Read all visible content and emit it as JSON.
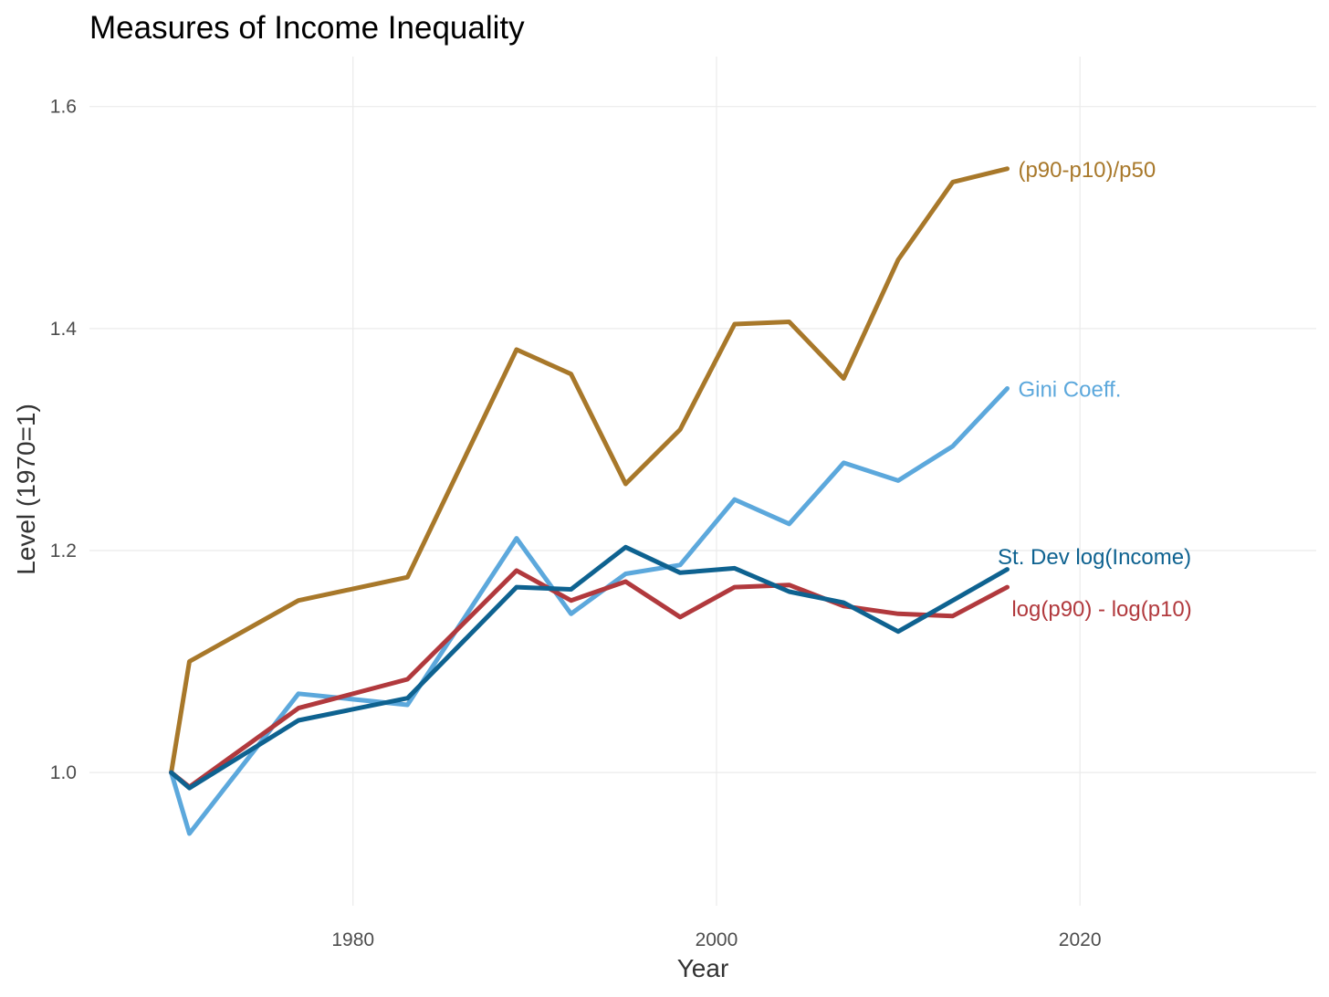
{
  "chart_data": {
    "type": "line",
    "title": "Measures of Income Inequality",
    "xlabel": "Year",
    "ylabel": "Level (1970=1)",
    "xlim": [
      1965.5,
      2033
    ],
    "ylim": [
      0.88,
      1.645
    ],
    "xticks": [
      1980,
      2000,
      2020
    ],
    "xtick_labels": [
      "1980",
      "2000",
      "2020"
    ],
    "yticks": [
      1.0,
      1.2,
      1.4,
      1.6
    ],
    "ytick_labels": [
      "1.0",
      "1.2",
      "1.4",
      "1.6"
    ],
    "grid": true,
    "legend": "direct labels at line ends",
    "x": [
      1970,
      1971,
      1977,
      1983,
      1989,
      1992,
      1995,
      1998,
      2001,
      2004,
      2007,
      2010,
      2013,
      2016
    ],
    "series": [
      {
        "name": "(p90-p10)/p50",
        "color": "#A8782A",
        "values": [
          1.0,
          1.1,
          1.155,
          1.176,
          1.381,
          1.359,
          1.26,
          1.309,
          1.404,
          1.406,
          1.355,
          1.462,
          1.532,
          1.544
        ]
      },
      {
        "name": "Gini Coeff.",
        "color": "#5CA8DC",
        "values": [
          1.0,
          0.945,
          1.071,
          1.061,
          1.211,
          1.143,
          1.179,
          1.187,
          1.246,
          1.224,
          1.279,
          1.263,
          1.294,
          1.346
        ]
      },
      {
        "name": "log(p90) - log(p10)",
        "color": "#B1393D",
        "values": [
          1.0,
          0.987,
          1.058,
          1.084,
          1.182,
          1.155,
          1.172,
          1.14,
          1.167,
          1.169,
          1.15,
          1.143,
          1.141,
          1.167
        ]
      },
      {
        "name": "St. Dev log(Income)",
        "color": "#0E6290",
        "values": [
          1.0,
          0.986,
          1.047,
          1.067,
          1.167,
          1.165,
          1.203,
          1.18,
          1.184,
          1.163,
          1.153,
          1.127,
          1.155,
          1.183
        ]
      }
    ],
    "labels": [
      {
        "text": "(p90-p10)/p50",
        "color": "#A8782A",
        "x": 2016.6,
        "y": 1.544,
        "anchor": "start"
      },
      {
        "text": "Gini Coeff.",
        "color": "#5CA8DC",
        "x": 2016.6,
        "y": 1.346,
        "anchor": "start"
      },
      {
        "text": "St. Dev log(Income)",
        "color": "#0E6290",
        "x": 2020.8,
        "y": 1.195,
        "anchor": "middle"
      },
      {
        "text": "log(p90) - log(p10)",
        "color": "#B1393D",
        "x": 2021.2,
        "y": 1.148,
        "anchor": "middle"
      }
    ]
  }
}
